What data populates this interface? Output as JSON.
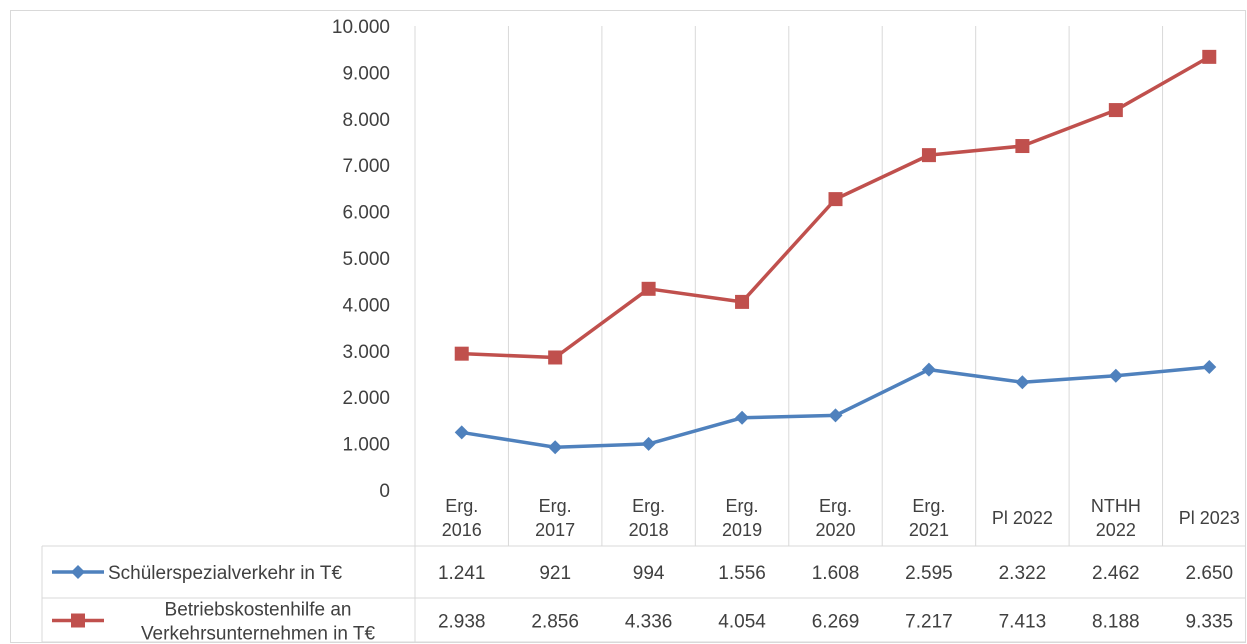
{
  "chart_data": {
    "type": "line",
    "categories": [
      [
        "Erg.",
        "2016"
      ],
      [
        "Erg.",
        "2017"
      ],
      [
        "Erg.",
        "2018"
      ],
      [
        "Erg.",
        "2019"
      ],
      [
        "Erg.",
        "2020"
      ],
      [
        "Erg.",
        "2021"
      ],
      [
        "Pl 2022"
      ],
      [
        "NTHH",
        "2022"
      ],
      [
        "Pl 2023"
      ]
    ],
    "ylim": [
      0,
      10000
    ],
    "yticks": [
      0,
      1000,
      2000,
      3000,
      4000,
      5000,
      6000,
      7000,
      8000,
      9000,
      10000
    ],
    "ytick_labels": [
      "0",
      "1.000",
      "2.000",
      "3.000",
      "4.000",
      "5.000",
      "6.000",
      "7.000",
      "8.000",
      "9.000",
      "10.000"
    ],
    "grid": "vertical",
    "legend": "data-table-below",
    "series": [
      {
        "name": "Schülerspezialverkehr in T€",
        "name_lines": [
          "Schülerspezialverkehr in T€"
        ],
        "color": "#4f81bd",
        "marker": "diamond",
        "values": [
          1241,
          921,
          994,
          1556,
          1608,
          2595,
          2322,
          2462,
          2650
        ],
        "labels": [
          "1.241",
          "921",
          "994",
          "1.556",
          "1.608",
          "2.595",
          "2.322",
          "2.462",
          "2.650"
        ]
      },
      {
        "name": "Betriebskostenhilfe an Verkehrsunternehmen in T€",
        "name_lines": [
          "Betriebskostenhilfe an",
          "Verkehrsunternehmen in T€"
        ],
        "color": "#c0504d",
        "marker": "square",
        "values": [
          2938,
          2856,
          4336,
          4054,
          6269,
          7217,
          7413,
          8188,
          9335
        ],
        "labels": [
          "2.938",
          "2.856",
          "4.336",
          "4.054",
          "6.269",
          "7.217",
          "7.413",
          "8.188",
          "9.335"
        ]
      }
    ]
  }
}
